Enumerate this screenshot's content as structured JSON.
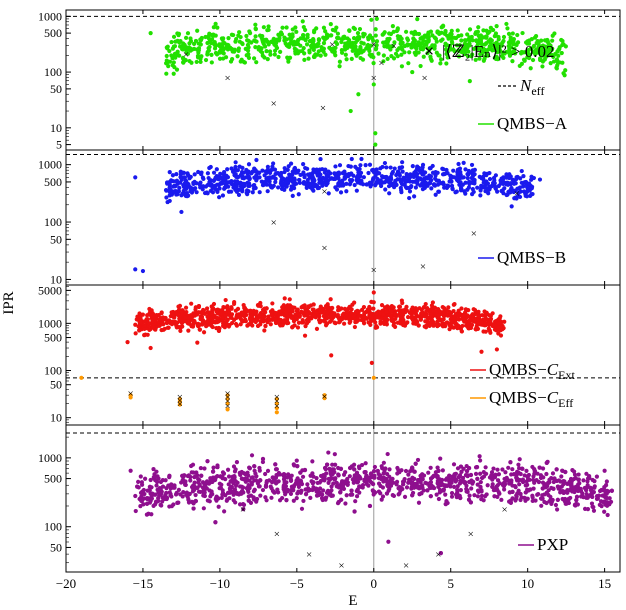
{
  "chart_data": {
    "type": "scatter",
    "xlabel": "E",
    "ylabel": "IPR",
    "xlim": [
      -20,
      16
    ],
    "x_ticks": [
      "−20",
      "−15",
      "−10",
      "−5",
      "0",
      "5",
      "10",
      "15"
    ],
    "x_tick_values": [
      -20,
      -15,
      -10,
      -5,
      0,
      5,
      10,
      15
    ],
    "y_scale": "log",
    "grid": false,
    "colors": {
      "qmbs_a": "#22e000",
      "qmbs_b": "#1a1aee",
      "qmbs_c_ext": "#ee1111",
      "qmbs_c_eff": "#ff9900",
      "pxp": "#8e0f8e",
      "n_eff_line": "#000000",
      "marker": "#000000",
      "center_line": "#9a9a9a"
    },
    "panels": [
      {
        "id": "a",
        "series_label": "QMBS−A",
        "color": "qmbs_a",
        "ylim": [
          4,
          1300
        ],
        "yticks": [
          5,
          10,
          50,
          100,
          500,
          1000
        ],
        "ytick_labels": [
          "5",
          "10",
          "50",
          "100",
          "500",
          "1000"
        ],
        "n_eff": 1000,
        "cloud": {
          "x_min": -13.5,
          "x_max": 12.5,
          "y_center": 330,
          "spread": 0.45,
          "n": 900
        },
        "outliers": [
          [
            -14.5,
            500
          ],
          [
            -9.5,
            300
          ],
          [
            -2.5,
            200
          ],
          [
            -1.0,
            40
          ],
          [
            0,
            60
          ],
          [
            0.1,
            8
          ],
          [
            0.1,
            5
          ],
          [
            -1.5,
            20
          ],
          [
            0.2,
            900
          ],
          [
            2.5,
            100
          ]
        ],
        "markers": [
          [
            -12.2,
            210
          ],
          [
            -9.5,
            80
          ],
          [
            -6.5,
            28
          ],
          [
            -3.3,
            23
          ],
          [
            -2.7,
            320
          ],
          [
            0,
            320
          ],
          [
            0,
            80
          ],
          [
            0.5,
            150
          ],
          [
            1.3,
            300
          ],
          [
            3.3,
            80
          ]
        ],
        "legend": {
          "marker_text": "|⟨ℤ₂|Eₙ⟩|² > 0.02",
          "line_text": "N_eff",
          "line_label": "N",
          "line_sub": "eff"
        }
      },
      {
        "id": "b",
        "series_label": "QMBS−B",
        "color": "qmbs_b",
        "ylim": [
          8,
          1800
        ],
        "yticks": [
          10,
          50,
          100,
          500,
          1000
        ],
        "ytick_labels": [
          "10",
          "50",
          "100",
          "500",
          "1000"
        ],
        "n_eff": 1500,
        "cloud": {
          "x_min": -13.5,
          "x_max": 10.5,
          "y_center": 580,
          "spread": 0.35,
          "n": 900
        },
        "outliers": [
          [
            -15.5,
            600
          ],
          [
            -15.5,
            15
          ],
          [
            -15.0,
            14
          ],
          [
            10.8,
            550
          ],
          [
            -12.5,
            150
          ]
        ],
        "markers": [
          [
            -6.5,
            100
          ],
          [
            -3.2,
            36
          ],
          [
            0,
            15
          ],
          [
            3.2,
            17
          ],
          [
            6.5,
            65
          ],
          [
            9.3,
            320
          ],
          [
            -3.2,
            350
          ]
        ]
      },
      {
        "id": "c",
        "series_label_1": "QMBS−",
        "series_italic_1": "C",
        "series_sub_1": "Ext",
        "series_label_2": "QMBS−",
        "series_italic_2": "C",
        "series_sub_2": "Eff",
        "color": "qmbs_c_ext",
        "color_2": "qmbs_c_eff",
        "ylim": [
          7,
          6500
        ],
        "yticks": [
          10,
          50,
          100,
          500,
          1000,
          5000
        ],
        "ytick_labels": [
          "10",
          "50",
          "100",
          "500",
          "1000",
          "5000"
        ],
        "n_eff": 70,
        "cloud": {
          "x_min": -15.5,
          "x_max": 8.5,
          "y_center": 1500,
          "spread": 0.35,
          "n": 1300
        },
        "outliers": [
          [
            -16.0,
            400
          ],
          [
            -14.5,
            300
          ],
          [
            0,
            4500
          ],
          [
            0,
            2800
          ],
          [
            7.0,
            250
          ],
          [
            8.0,
            280
          ]
        ],
        "eff_points": [
          [
            -19.0,
            70
          ],
          [
            -15.8,
            30
          ],
          [
            -15.8,
            27
          ],
          [
            -12.6,
            25
          ],
          [
            -12.6,
            22
          ],
          [
            -12.6,
            19
          ],
          [
            -9.5,
            30
          ],
          [
            -9.5,
            25
          ],
          [
            -9.5,
            20
          ],
          [
            -9.5,
            15
          ],
          [
            -6.3,
            25
          ],
          [
            -6.3,
            20
          ],
          [
            -6.3,
            16
          ],
          [
            -6.3,
            13
          ],
          [
            -3.2,
            30
          ],
          [
            -3.2,
            26
          ],
          [
            0,
            70
          ]
        ],
        "markers": [
          [
            -15.8,
            33
          ],
          [
            -12.6,
            28
          ],
          [
            -12.6,
            24
          ],
          [
            -12.6,
            20
          ],
          [
            -9.5,
            33
          ],
          [
            -9.5,
            28
          ],
          [
            -9.5,
            23
          ],
          [
            -9.5,
            18
          ],
          [
            -6.3,
            28
          ],
          [
            -6.3,
            23
          ],
          [
            -6.3,
            18
          ],
          [
            -3.2,
            29
          ]
        ]
      },
      {
        "id": "d",
        "series_label": "PXP",
        "color": "pxp",
        "ylim": [
          22,
          3000
        ],
        "yticks": [
          50,
          100,
          500,
          1000
        ],
        "ytick_labels": [
          "50",
          "100",
          "500",
          "1000"
        ],
        "n_eff": 2300,
        "cloud": {
          "x_min": -15.5,
          "x_max": 15.5,
          "y_center": 450,
          "spread": 0.42,
          "n": 1400
        },
        "outliers": [
          [
            -15.8,
            650
          ],
          [
            15.0,
            650
          ],
          [
            -11.0,
            700
          ],
          [
            11.0,
            700
          ]
        ],
        "markers": [
          [
            -8.5,
            180
          ],
          [
            -6.3,
            80
          ],
          [
            -4.2,
            40
          ],
          [
            -2.1,
            28
          ],
          [
            2.1,
            28
          ],
          [
            4.2,
            40
          ],
          [
            6.3,
            80
          ],
          [
            8.5,
            180
          ]
        ]
      }
    ]
  }
}
